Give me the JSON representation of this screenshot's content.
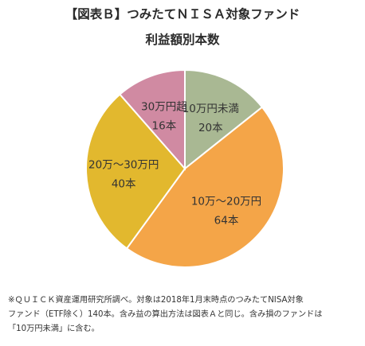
{
  "chart_data": {
    "type": "pie",
    "title": "【図表Ｂ】つみたてＮＩＳＡ対象ファンド",
    "subtitle": "利益額別本数",
    "slices": [
      {
        "label": "10万円未満",
        "value_label": "20本",
        "value": 20,
        "color": "#a9b893"
      },
      {
        "label": "10万〜20万円",
        "value_label": "64本",
        "value": 64,
        "color": "#f4a548"
      },
      {
        "label": "20万〜30万円",
        "value_label": "40本",
        "value": 40,
        "color": "#e2b82e"
      },
      {
        "label": "30万円超",
        "value_label": "16本",
        "value": 16,
        "color": "#d08aa2"
      }
    ],
    "start_position": "top",
    "direction": "clockwise"
  },
  "footnote": {
    "line1": "※ＱＵＩＣＫ資産運用研究所調べ。対象は2018年1月末時点のつみたてNISA対象",
    "line2": "ファンド（ETF除く）140本。含み益の算出方法は図表Ａと同じ。含み損のファンドは",
    "line3": "「10万円未満」に含む。"
  }
}
